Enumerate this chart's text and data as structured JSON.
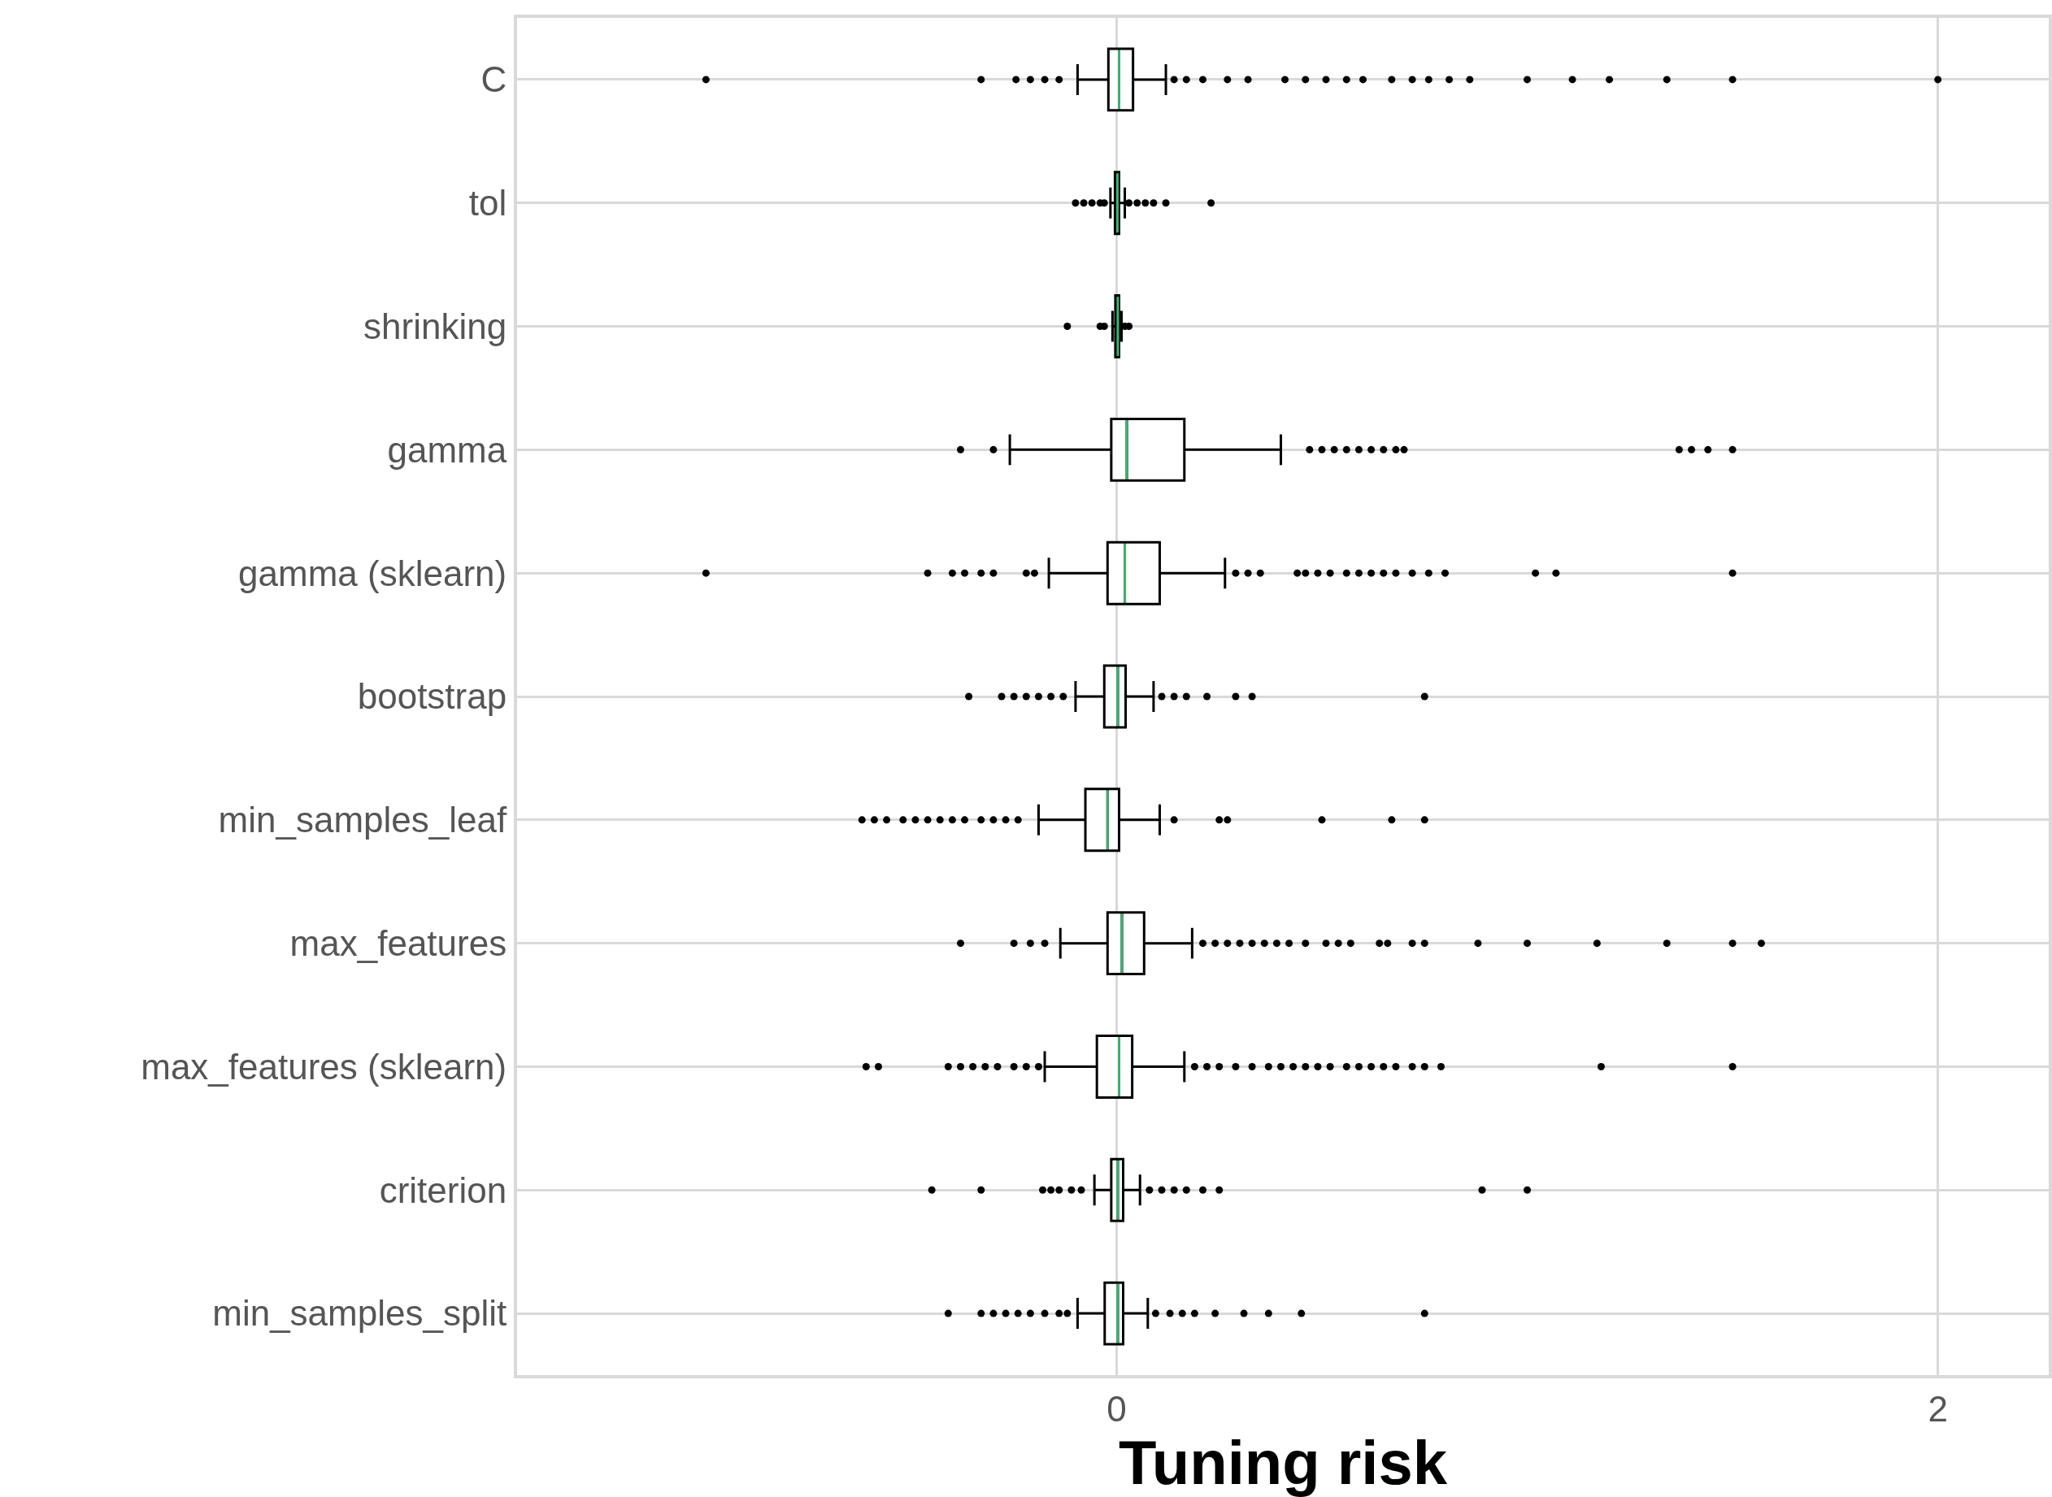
{
  "chart_data": {
    "type": "box",
    "orientation": "horizontal",
    "xlabel": "Tuning risk",
    "categories": [
      "C",
      "tol",
      "shrinking",
      "gamma",
      "gamma (sklearn)",
      "bootstrap",
      "min_samples_leaf",
      "max_features",
      "max_features (sklearn)",
      "criterion",
      "min_samples_split"
    ],
    "xlim": [
      -1.46,
      2.27
    ],
    "xticks": [
      0,
      2
    ],
    "grid": true,
    "marker": "circle",
    "series": [
      {
        "color": "#000000",
        "boxes": [
          {
            "low": -0.095,
            "q1": -0.02,
            "median": 0.006,
            "q3": 0.04,
            "high": 0.12,
            "outliers": [
              -1.0,
              -0.33,
              -0.245,
              -0.21,
              -0.175,
              -0.14,
              0.14,
              0.17,
              0.21,
              0.27,
              0.32,
              0.41,
              0.46,
              0.51,
              0.56,
              0.6,
              0.67,
              0.72,
              0.76,
              0.81,
              0.86,
              1.0,
              1.11,
              1.2,
              1.34,
              1.5,
              2.0
            ]
          },
          {
            "low": -0.015,
            "q1": -0.004,
            "median": 0.002,
            "q3": 0.006,
            "high": 0.02,
            "outliers": [
              -0.1,
              -0.08,
              -0.06,
              -0.04,
              -0.03,
              0.03,
              0.05,
              0.07,
              0.09,
              0.12,
              0.23
            ]
          },
          {
            "low": -0.01,
            "q1": -0.003,
            "median": 0.003,
            "q3": 0.006,
            "high": 0.012,
            "outliers": [
              -0.12,
              -0.04,
              -0.03,
              0.02,
              0.03
            ]
          },
          {
            "low": -0.26,
            "q1": -0.013,
            "median": 0.025,
            "q3": 0.165,
            "high": 0.4,
            "outliers": [
              -0.38,
              -0.3,
              0.47,
              0.5,
              0.53,
              0.56,
              0.59,
              0.62,
              0.65,
              0.68,
              0.7,
              1.37,
              1.4,
              1.44,
              1.5
            ]
          },
          {
            "low": -0.165,
            "q1": -0.022,
            "median": 0.02,
            "q3": 0.105,
            "high": 0.264,
            "outliers": [
              -1.0,
              -0.46,
              -0.4,
              -0.37,
              -0.33,
              -0.3,
              -0.22,
              -0.2,
              0.29,
              0.32,
              0.35,
              0.44,
              0.46,
              0.49,
              0.52,
              0.56,
              0.59,
              0.62,
              0.65,
              0.68,
              0.72,
              0.76,
              0.8,
              1.02,
              1.07,
              1.5
            ]
          },
          {
            "low": -0.1,
            "q1": -0.03,
            "median": 0.003,
            "q3": 0.022,
            "high": 0.09,
            "outliers": [
              -0.36,
              -0.28,
              -0.25,
              -0.22,
              -0.19,
              -0.16,
              -0.13,
              0.11,
              0.14,
              0.17,
              0.22,
              0.29,
              0.33,
              0.75
            ]
          },
          {
            "low": -0.19,
            "q1": -0.076,
            "median": -0.022,
            "q3": 0.006,
            "high": 0.105,
            "outliers": [
              -0.62,
              -0.59,
              -0.56,
              -0.52,
              -0.49,
              -0.46,
              -0.43,
              -0.4,
              -0.37,
              -0.33,
              -0.3,
              -0.27,
              -0.24,
              0.14,
              0.25,
              0.27,
              0.5,
              0.67,
              0.75
            ]
          },
          {
            "low": -0.137,
            "q1": -0.022,
            "median": 0.013,
            "q3": 0.067,
            "high": 0.184,
            "outliers": [
              -0.38,
              -0.25,
              -0.21,
              -0.175,
              0.21,
              0.24,
              0.27,
              0.3,
              0.33,
              0.36,
              0.39,
              0.42,
              0.46,
              0.51,
              0.54,
              0.57,
              0.64,
              0.66,
              0.72,
              0.75,
              0.88,
              1.0,
              1.17,
              1.34,
              1.5,
              1.57
            ]
          },
          {
            "low": -0.175,
            "q1": -0.048,
            "median": 0.006,
            "q3": 0.038,
            "high": 0.165,
            "outliers": [
              -0.61,
              -0.58,
              -0.41,
              -0.38,
              -0.35,
              -0.32,
              -0.29,
              -0.25,
              -0.22,
              -0.19,
              0.19,
              0.22,
              0.25,
              0.29,
              0.33,
              0.37,
              0.4,
              0.43,
              0.46,
              0.49,
              0.52,
              0.56,
              0.59,
              0.62,
              0.65,
              0.68,
              0.72,
              0.75,
              0.79,
              1.18,
              1.5
            ]
          },
          {
            "low": -0.054,
            "q1": -0.013,
            "median": 0.003,
            "q3": 0.016,
            "high": 0.057,
            "outliers": [
              -0.45,
              -0.33,
              -0.18,
              -0.16,
              -0.14,
              -0.11,
              -0.086,
              0.08,
              0.11,
              0.14,
              0.17,
              0.21,
              0.25,
              0.89,
              1.0
            ]
          },
          {
            "low": -0.095,
            "q1": -0.029,
            "median": 0.003,
            "q3": 0.016,
            "high": 0.076,
            "outliers": [
              -0.41,
              -0.33,
              -0.3,
              -0.27,
              -0.24,
              -0.21,
              -0.175,
              -0.14,
              -0.12,
              0.095,
              0.13,
              0.16,
              0.19,
              0.24,
              0.31,
              0.37,
              0.45,
              0.75
            ]
          }
        ]
      }
    ]
  }
}
